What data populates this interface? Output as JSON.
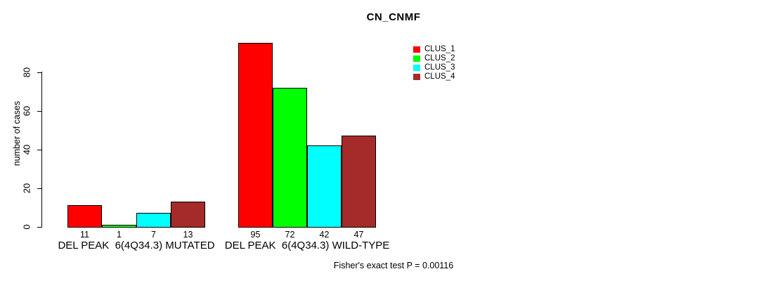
{
  "chart_data": {
    "type": "bar",
    "title": "CN_CNMF",
    "ylabel": "number of cases",
    "xlabel": "",
    "ylim": [
      0,
      95
    ],
    "yticks": [
      0,
      20,
      40,
      60,
      80
    ],
    "grid": false,
    "legend_position": "top-right",
    "categories": [
      "DEL PEAK  6(4Q34.3) MUTATED",
      "DEL PEAK  6(4Q34.3) WILD-TYPE"
    ],
    "series": [
      {
        "name": "CLUS_1",
        "color": "#FF0000",
        "values": [
          11,
          95
        ]
      },
      {
        "name": "CLUS_2",
        "color": "#00FF00",
        "values": [
          1,
          72
        ]
      },
      {
        "name": "CLUS_3",
        "color": "#00FFFF",
        "values": [
          7,
          42
        ]
      },
      {
        "name": "CLUS_4",
        "color": "#A52A2A",
        "values": [
          13,
          47
        ]
      }
    ],
    "bar_value_labels": [
      [
        11,
        1,
        7,
        13
      ],
      [
        95,
        72,
        42,
        47
      ]
    ],
    "annotation": "Fisher's exact test P = 0.00116",
    "axis_color": "#000000",
    "bar_border_color": "#000000"
  }
}
